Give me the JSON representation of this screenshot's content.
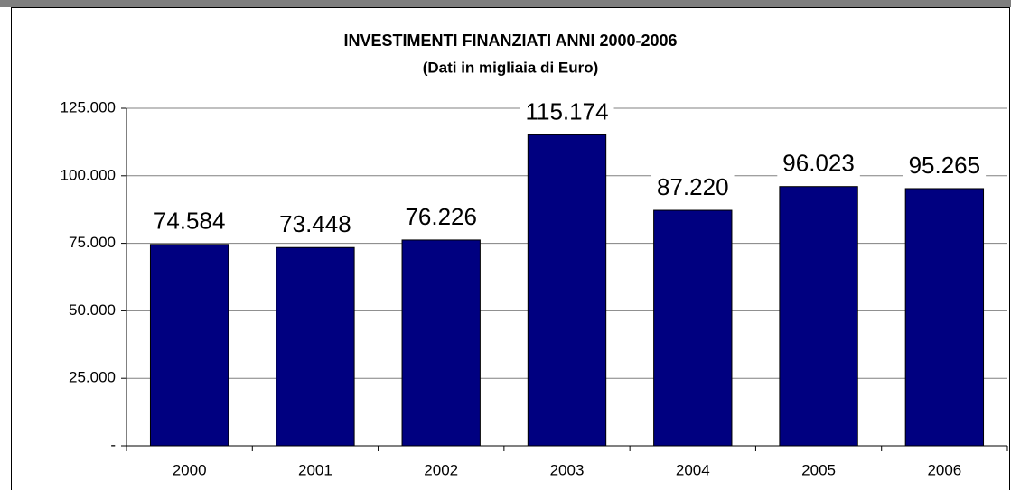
{
  "chart_data": {
    "type": "bar",
    "title": "INVESTIMENTI FINANZIATI ANNI 2000-2006",
    "subtitle": "(Dati in migliaia di Euro)",
    "categories": [
      "2000",
      "2001",
      "2002",
      "2003",
      "2004",
      "2005",
      "2006"
    ],
    "values": [
      74584,
      73448,
      76226,
      115174,
      87220,
      96023,
      95265
    ],
    "value_labels": [
      "74.584",
      "73.448",
      "76.226",
      "115.174",
      "87.220",
      "96.023",
      "95.265"
    ],
    "color": "#000080",
    "ylim": [
      0,
      125000
    ],
    "yticks": [
      {
        "value": 0,
        "label": "-"
      },
      {
        "value": 25000,
        "label": "25.000"
      },
      {
        "value": 50000,
        "label": "50.000"
      },
      {
        "value": 75000,
        "label": "75.000"
      },
      {
        "value": 100000,
        "label": "100.000"
      },
      {
        "value": 125000,
        "label": "125.000"
      }
    ],
    "grid": true
  }
}
